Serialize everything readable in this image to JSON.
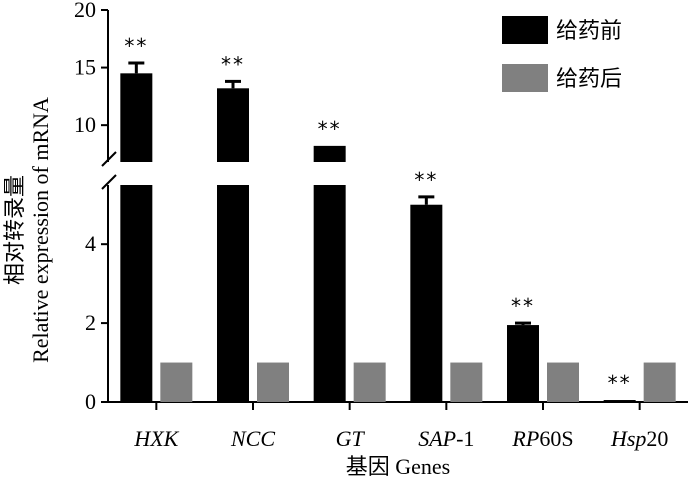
{
  "chart_data": {
    "type": "bar",
    "xlabel": "基因 Genes",
    "ylabel_cn": "相对转录量",
    "ylabel_en": "Relative expression of mRNA",
    "axis_break": {
      "lower_range": [
        0,
        5.5
      ],
      "upper_range": [
        6.8,
        20
      ]
    },
    "y_ticks_lower": [
      0,
      2,
      4
    ],
    "y_ticks_upper": [
      10,
      15,
      20
    ],
    "categories": [
      {
        "label": "HXK",
        "italic": "HXK",
        "plain": ""
      },
      {
        "label": "NCC",
        "italic": "NCC",
        "plain": ""
      },
      {
        "label": "GT",
        "italic": "GT",
        "plain": ""
      },
      {
        "label": "SAP-1",
        "italic": "SAP",
        "plain": "-1"
      },
      {
        "label": "RP60S",
        "italic": "RP",
        "plain": "60S"
      },
      {
        "label": "Hsp20",
        "italic": "Hsp",
        "plain": "20"
      }
    ],
    "series": [
      {
        "name": "给药前",
        "color": "#000000",
        "values": [
          14.5,
          13.2,
          8.2,
          5.0,
          1.95,
          0.05
        ],
        "errors": [
          0.9,
          0.6,
          0,
          0.2,
          0.05,
          0
        ]
      },
      {
        "name": "给药后",
        "color": "#808080",
        "values": [
          1.0,
          1.0,
          1.0,
          1.0,
          1.0,
          1.0
        ],
        "errors": [
          0,
          0,
          0,
          0,
          0,
          0
        ]
      }
    ],
    "significance": [
      "**",
      "**",
      "**",
      "**",
      "**",
      "**"
    ],
    "legend_position": "top-right"
  }
}
